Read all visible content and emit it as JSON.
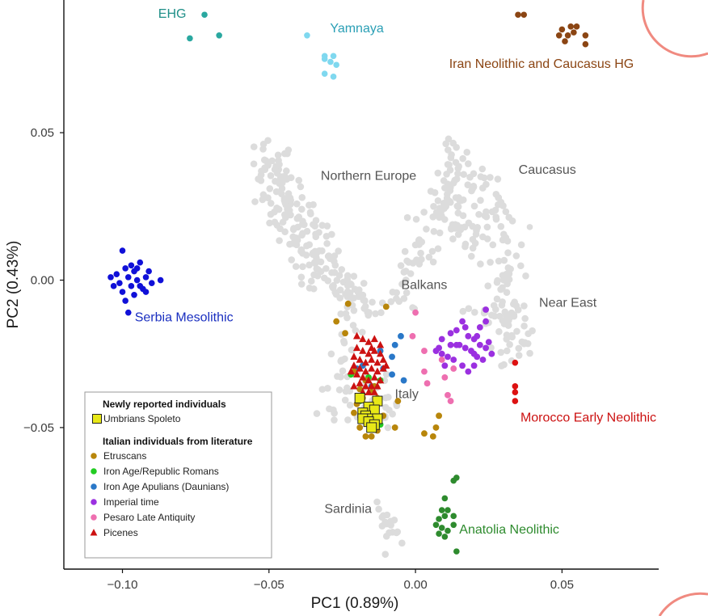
{
  "chart_data": {
    "type": "scatter",
    "xlabel": "PC1 (0.89%)",
    "ylabel": "PC2 (0.43%)",
    "xlim": [
      -0.12,
      0.083
    ],
    "ylim": [
      -0.098,
      0.095
    ],
    "x_ticks": [
      {
        "value": -0.1,
        "label": "−0.10"
      },
      {
        "value": -0.05,
        "label": "−0.05"
      },
      {
        "value": 0.0,
        "label": "0.00"
      },
      {
        "value": 0.05,
        "label": "0.05"
      }
    ],
    "y_ticks": [
      {
        "value": 0.05,
        "label": "0.05"
      },
      {
        "value": 0.0,
        "label": "0.00"
      },
      {
        "value": -0.05,
        "label": "−0.05"
      }
    ],
    "grid": false,
    "legend_position": "bottom-left",
    "legend": {
      "group1_title": "Newly reported individuals",
      "group1_items": [
        {
          "label": "Umbrians Spoleto",
          "color": "#e8e817",
          "marker": "square"
        }
      ],
      "group2_title": "Italian individuals from literature",
      "group2_items": [
        {
          "label": "Etruscans",
          "color": "#b8860b",
          "marker": "circle"
        },
        {
          "label": "Iron Age/Republic Romans",
          "color": "#22cc22",
          "marker": "circle"
        },
        {
          "label": "Iron Age Apulians (Daunians)",
          "color": "#2a78c8",
          "marker": "circle"
        },
        {
          "label": "Imperial time",
          "color": "#9b30e0",
          "marker": "circle"
        },
        {
          "label": "Pesaro Late Antiquity",
          "color": "#ee6fb0",
          "marker": "circle"
        },
        {
          "label": "Picenes",
          "color": "#cc1111",
          "marker": "triangle"
        }
      ]
    },
    "reference_groups": [
      {
        "label": "EHG",
        "color": "#2aa8a0",
        "label_color": "#1f8f88",
        "points": [
          [
            -0.072,
            0.09
          ],
          [
            -0.077,
            0.082
          ],
          [
            -0.067,
            0.083
          ]
        ],
        "label_at": [
          -0.083,
          0.089
        ]
      },
      {
        "label": "Yamnaya",
        "color": "#7fd8ef",
        "label_color": "#2a9fb5",
        "points": [
          [
            -0.037,
            0.083
          ],
          [
            -0.031,
            0.076
          ],
          [
            -0.028,
            0.076
          ],
          [
            -0.029,
            0.074
          ],
          [
            -0.031,
            0.075
          ],
          [
            -0.027,
            0.073
          ],
          [
            -0.031,
            0.07
          ],
          [
            -0.028,
            0.069
          ]
        ],
        "label_at": [
          -0.02,
          0.084
        ]
      },
      {
        "label": "Iran Neolithic and Caucasus HG",
        "color": "#8b4513",
        "label_color": "#8b4513",
        "points": [
          [
            0.035,
            0.09
          ],
          [
            0.037,
            0.09
          ],
          [
            0.05,
            0.085
          ],
          [
            0.053,
            0.086
          ],
          [
            0.055,
            0.086
          ],
          [
            0.049,
            0.083
          ],
          [
            0.052,
            0.083
          ],
          [
            0.054,
            0.084
          ],
          [
            0.058,
            0.083
          ],
          [
            0.051,
            0.081
          ],
          [
            0.058,
            0.08
          ]
        ],
        "label_at": [
          0.043,
          0.072
        ]
      },
      {
        "label": "Serbia Mesolithic",
        "color": "#1010d8",
        "label_color": "#1a2fc0",
        "points": [
          [
            -0.1,
            0.01
          ],
          [
            -0.097,
            0.005
          ],
          [
            -0.094,
            0.006
          ],
          [
            -0.096,
            0.003
          ],
          [
            -0.099,
            0.004
          ],
          [
            -0.102,
            0.002
          ],
          [
            -0.101,
            -0.001
          ],
          [
            -0.098,
            0.001
          ],
          [
            -0.095,
            0.0
          ],
          [
            -0.092,
            0.001
          ],
          [
            -0.09,
            -0.001
          ],
          [
            -0.093,
            -0.003
          ],
          [
            -0.097,
            -0.002
          ],
          [
            -0.1,
            -0.004
          ],
          [
            -0.099,
            -0.007
          ],
          [
            -0.087,
            0.0
          ],
          [
            -0.091,
            0.003
          ],
          [
            -0.104,
            0.001
          ],
          [
            -0.103,
            -0.002
          ],
          [
            -0.094,
            -0.002
          ],
          [
            -0.095,
            0.004
          ],
          [
            -0.098,
            -0.011
          ],
          [
            -0.096,
            -0.005
          ],
          [
            -0.092,
            -0.004
          ]
        ],
        "label_at": [
          -0.079,
          -0.014
        ]
      },
      {
        "label": "Morocco Early Neolithic",
        "color": "#dd1111",
        "label_color": "#cc1111",
        "points": [
          [
            0.034,
            -0.028
          ],
          [
            0.034,
            -0.036
          ],
          [
            0.034,
            -0.038
          ],
          [
            0.034,
            -0.041
          ]
        ],
        "label_at": [
          0.059,
          -0.048
        ]
      },
      {
        "label": "Anatolia Neolithic",
        "color": "#2e8b2e",
        "label_color": "#2e8b2e",
        "points": [
          [
            0.013,
            -0.068
          ],
          [
            0.014,
            -0.067
          ],
          [
            0.01,
            -0.074
          ],
          [
            0.009,
            -0.078
          ],
          [
            0.011,
            -0.078
          ],
          [
            0.008,
            -0.081
          ],
          [
            0.01,
            -0.08
          ],
          [
            0.013,
            -0.08
          ],
          [
            0.007,
            -0.083
          ],
          [
            0.009,
            -0.084
          ],
          [
            0.011,
            -0.085
          ],
          [
            0.008,
            -0.086
          ],
          [
            0.01,
            -0.087
          ],
          [
            0.013,
            -0.083
          ],
          [
            0.014,
            -0.092
          ]
        ],
        "label_at": [
          0.032,
          -0.086
        ]
      },
      {
        "label": "Caucasus",
        "color": "#dcdcdc",
        "label_color": "#555555",
        "points": [
          [
            0.039,
            0.018
          ]
        ],
        "label_at": [
          0.045,
          0.036
        ]
      },
      {
        "label": "Near East",
        "color": "#dcdcdc",
        "label_color": "#555555",
        "points": [],
        "label_at": [
          0.052,
          -0.009
        ]
      },
      {
        "label": "Northern Europe",
        "color": "#dcdcdc",
        "label_color": "#555555",
        "points": [],
        "label_at": [
          -0.016,
          0.034
        ]
      },
      {
        "label": "Balkans",
        "color": "#dcdcdc",
        "label_color": "#555555",
        "points": [],
        "label_at": [
          0.003,
          -0.003
        ]
      },
      {
        "label": "Italy",
        "color": "#dcdcdc",
        "label_color": "#555555",
        "points": [],
        "label_at": [
          -0.003,
          -0.04
        ]
      },
      {
        "label": "Sardinia",
        "color": "#dcdcdc",
        "label_color": "#555555",
        "points": [],
        "label_at": [
          -0.023,
          -0.079
        ]
      }
    ],
    "background_cloud": {
      "color": "#dcdcdc",
      "segments": [
        {
          "from": [
            -0.053,
            0.046
          ],
          "to": [
            -0.034,
            0.006
          ],
          "spread": [
            0.0045,
            0.003
          ],
          "count": 130
        },
        {
          "from": [
            -0.034,
            0.006
          ],
          "to": [
            -0.016,
            -0.01
          ],
          "spread": [
            0.004,
            0.003
          ],
          "count": 70
        },
        {
          "from": [
            -0.02,
            -0.012
          ],
          "to": [
            -0.028,
            -0.049
          ],
          "spread": [
            0.003,
            0.0025
          ],
          "count": 30
        },
        {
          "from": [
            -0.02,
            -0.03
          ],
          "to": [
            -0.008,
            -0.048
          ],
          "spread": [
            0.003,
            0.003
          ],
          "count": 25
        },
        {
          "from": [
            -0.006,
            -0.008
          ],
          "to": [
            0.009,
            0.03
          ],
          "spread": [
            0.004,
            0.004
          ],
          "count": 55
        },
        {
          "from": [
            0.012,
            0.045
          ],
          "to": [
            0.018,
            0.01
          ],
          "spread": [
            0.003,
            0.004
          ],
          "count": 70
        },
        {
          "from": [
            0.023,
            0.035
          ],
          "to": [
            0.032,
            0.0
          ],
          "spread": [
            0.003,
            0.004
          ],
          "count": 55
        },
        {
          "from": [
            0.03,
            0.0
          ],
          "to": [
            0.033,
            -0.025
          ],
          "spread": [
            0.003,
            0.003
          ],
          "count": 45
        },
        {
          "from": [
            0.015,
            -0.01
          ],
          "to": [
            0.033,
            -0.012
          ],
          "spread": [
            0.003,
            0.003
          ],
          "count": 20
        },
        {
          "from": [
            -0.012,
            -0.078
          ],
          "to": [
            -0.006,
            -0.088
          ],
          "spread": [
            0.002,
            0.003
          ],
          "count": 18
        }
      ]
    },
    "italian_groups": {
      "Etruscans": [
        [
          -0.023,
          -0.008
        ],
        [
          -0.01,
          -0.009
        ],
        [
          -0.027,
          -0.014
        ],
        [
          -0.024,
          -0.018
        ],
        [
          -0.021,
          -0.031
        ],
        [
          -0.017,
          -0.034
        ],
        [
          -0.019,
          -0.037
        ],
        [
          -0.015,
          -0.038
        ],
        [
          -0.018,
          -0.04
        ],
        [
          -0.013,
          -0.04
        ],
        [
          -0.006,
          -0.041
        ],
        [
          -0.016,
          -0.043
        ],
        [
          -0.021,
          -0.045
        ],
        [
          -0.011,
          -0.046
        ],
        [
          -0.016,
          -0.049
        ],
        [
          -0.019,
          -0.05
        ],
        [
          -0.013,
          -0.051
        ],
        [
          -0.015,
          -0.053
        ],
        [
          -0.017,
          -0.053
        ],
        [
          -0.007,
          -0.05
        ],
        [
          0.003,
          -0.052
        ],
        [
          0.008,
          -0.046
        ],
        [
          0.007,
          -0.05
        ],
        [
          0.006,
          -0.053
        ],
        [
          -0.014,
          -0.036
        ],
        [
          -0.02,
          -0.042
        ]
      ],
      "Iron Age/Republic Romans": [
        [
          -0.022,
          -0.032
        ],
        [
          -0.016,
          -0.033
        ],
        [
          -0.012,
          -0.034
        ],
        [
          -0.019,
          -0.041
        ],
        [
          -0.014,
          -0.046
        ],
        [
          -0.012,
          -0.049
        ]
      ],
      "Iron Age Apulians (Daunians)": [
        [
          -0.005,
          -0.019
        ],
        [
          -0.007,
          -0.022
        ],
        [
          -0.012,
          -0.024
        ],
        [
          -0.008,
          -0.026
        ],
        [
          -0.02,
          -0.03
        ],
        [
          -0.018,
          -0.029
        ],
        [
          -0.011,
          -0.03
        ],
        [
          -0.008,
          -0.032
        ],
        [
          -0.004,
          -0.034
        ],
        [
          -0.015,
          -0.036
        ]
      ],
      "Imperial time": [
        [
          0.009,
          -0.02
        ],
        [
          0.012,
          -0.018
        ],
        [
          0.014,
          -0.017
        ],
        [
          0.016,
          -0.014
        ],
        [
          0.018,
          -0.019
        ],
        [
          0.02,
          -0.02
        ],
        [
          0.022,
          -0.016
        ],
        [
          0.024,
          -0.014
        ],
        [
          0.015,
          -0.022
        ],
        [
          0.017,
          -0.023
        ],
        [
          0.02,
          -0.025
        ],
        [
          0.022,
          -0.022
        ],
        [
          0.024,
          -0.023
        ],
        [
          0.025,
          -0.021
        ],
        [
          0.007,
          -0.024
        ],
        [
          0.009,
          -0.025
        ],
        [
          0.011,
          -0.026
        ],
        [
          0.013,
          -0.027
        ],
        [
          0.016,
          -0.029
        ],
        [
          0.018,
          -0.031
        ],
        [
          0.02,
          -0.029
        ],
        [
          0.021,
          -0.026
        ],
        [
          0.023,
          -0.027
        ],
        [
          0.026,
          -0.025
        ],
        [
          0.014,
          -0.022
        ],
        [
          0.017,
          -0.016
        ],
        [
          0.019,
          -0.024
        ],
        [
          0.021,
          -0.019
        ],
        [
          0.012,
          -0.022
        ],
        [
          0.01,
          -0.029
        ],
        [
          0.008,
          -0.023
        ],
        [
          0.024,
          -0.01
        ]
      ],
      "Pesaro Late Antiquity": [
        [
          0.0,
          -0.011
        ],
        [
          -0.001,
          -0.019
        ],
        [
          0.003,
          -0.024
        ],
        [
          0.009,
          -0.027
        ],
        [
          0.003,
          -0.031
        ],
        [
          0.01,
          -0.033
        ],
        [
          0.004,
          -0.035
        ],
        [
          0.012,
          -0.041
        ],
        [
          0.011,
          -0.039
        ],
        [
          0.013,
          -0.03
        ]
      ],
      "Picenes": [
        [
          -0.02,
          -0.019
        ],
        [
          -0.018,
          -0.02
        ],
        [
          -0.016,
          -0.021
        ],
        [
          -0.014,
          -0.02
        ],
        [
          -0.012,
          -0.022
        ],
        [
          -0.02,
          -0.023
        ],
        [
          -0.018,
          -0.024
        ],
        [
          -0.016,
          -0.025
        ],
        [
          -0.014,
          -0.024
        ],
        [
          -0.012,
          -0.025
        ],
        [
          -0.021,
          -0.026
        ],
        [
          -0.019,
          -0.027
        ],
        [
          -0.017,
          -0.028
        ],
        [
          -0.015,
          -0.027
        ],
        [
          -0.013,
          -0.028
        ],
        [
          -0.011,
          -0.027
        ],
        [
          -0.021,
          -0.029
        ],
        [
          -0.019,
          -0.03
        ],
        [
          -0.017,
          -0.031
        ],
        [
          -0.015,
          -0.03
        ],
        [
          -0.013,
          -0.031
        ],
        [
          -0.011,
          -0.03
        ],
        [
          -0.02,
          -0.032
        ],
        [
          -0.018,
          -0.033
        ],
        [
          -0.016,
          -0.034
        ],
        [
          -0.014,
          -0.033
        ],
        [
          -0.012,
          -0.034
        ],
        [
          -0.019,
          -0.035
        ],
        [
          -0.017,
          -0.036
        ],
        [
          -0.015,
          -0.036
        ],
        [
          -0.013,
          -0.036
        ],
        [
          -0.018,
          -0.038
        ],
        [
          -0.016,
          -0.038
        ],
        [
          -0.014,
          -0.038
        ],
        [
          -0.021,
          -0.036
        ],
        [
          -0.01,
          -0.029
        ],
        [
          -0.022,
          -0.031
        ],
        [
          -0.015,
          -0.023
        ]
      ],
      "Umbrians Spoleto": [
        [
          -0.019,
          -0.04
        ],
        [
          -0.013,
          -0.041
        ],
        [
          -0.016,
          -0.043
        ],
        [
          -0.018,
          -0.045
        ],
        [
          -0.014,
          -0.044
        ],
        [
          -0.017,
          -0.046
        ],
        [
          -0.015,
          -0.047
        ],
        [
          -0.018,
          -0.047
        ],
        [
          -0.013,
          -0.047
        ],
        [
          -0.016,
          -0.048
        ],
        [
          -0.014,
          -0.049
        ],
        [
          -0.015,
          -0.05
        ]
      ]
    }
  }
}
